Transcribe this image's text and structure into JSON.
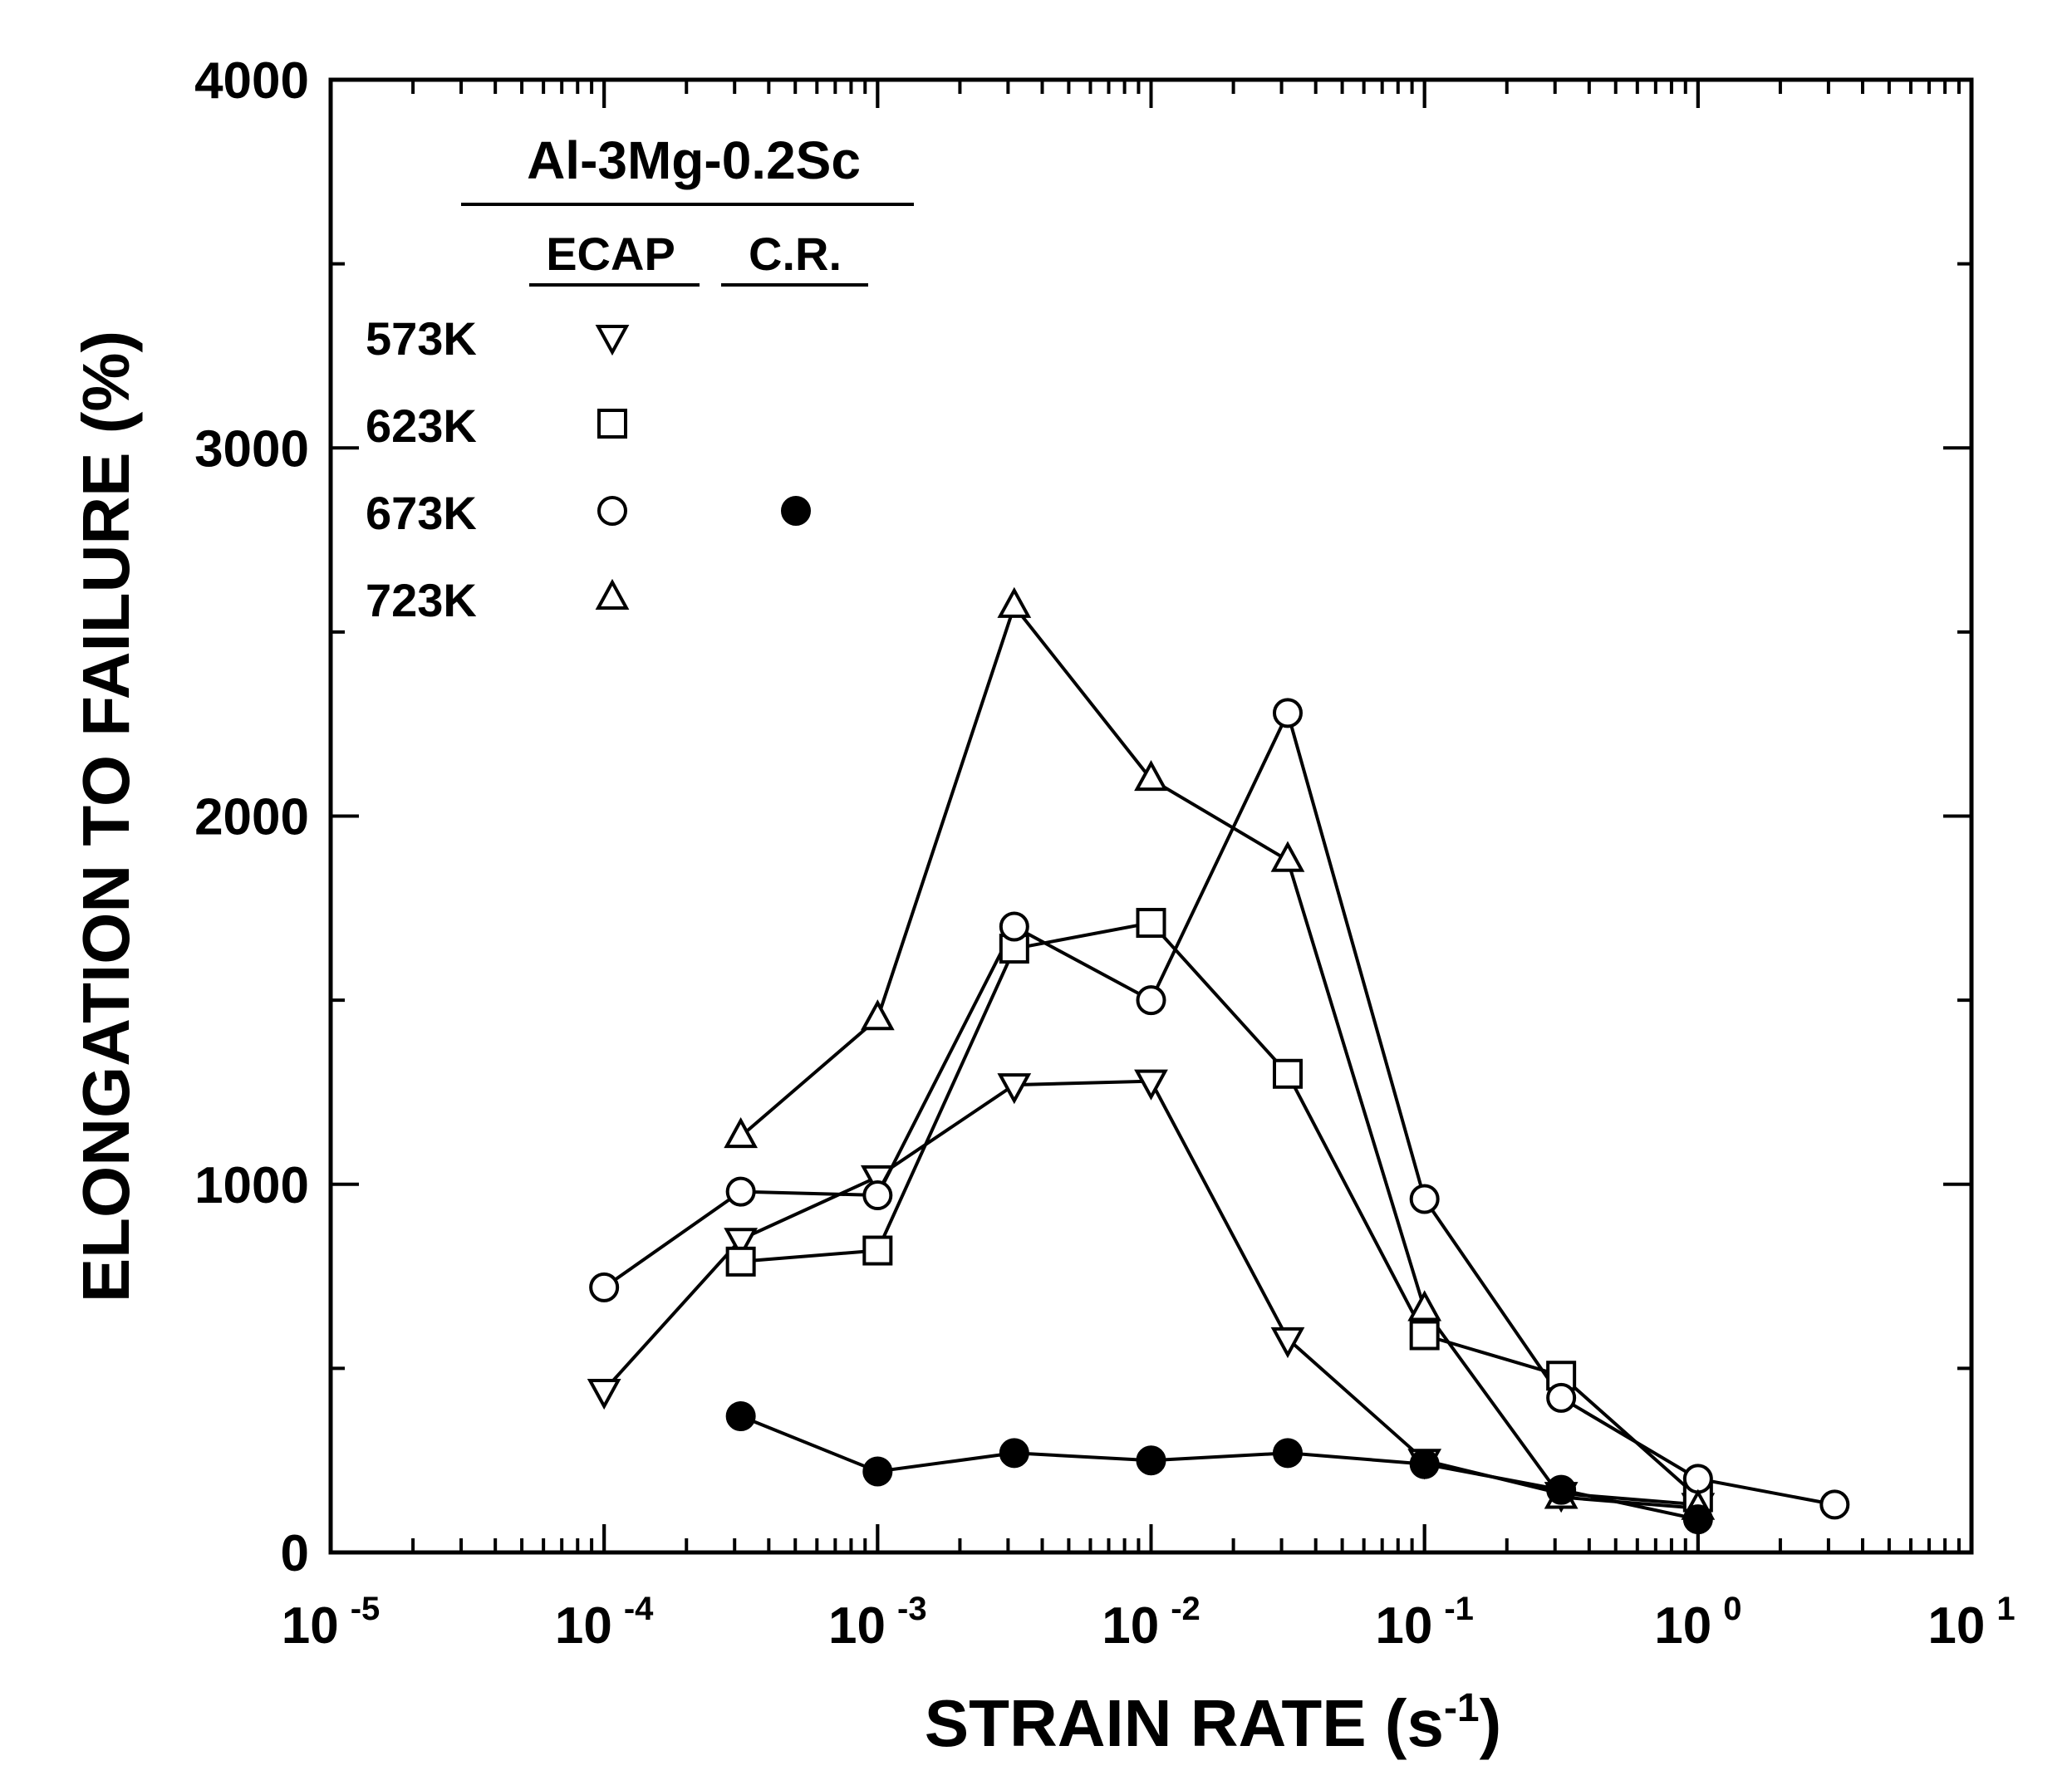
{
  "chart_data": {
    "type": "scatter",
    "xlabel_main": "STRAIN RATE (s",
    "xlabel_sup": "-1",
    "xlabel_close": ")",
    "ylabel": "ELONGATION TO FAILURE (%)",
    "xscale": "log",
    "xlim": [
      1e-05,
      10
    ],
    "ylim": [
      0,
      4000
    ],
    "x_ticks": [
      {
        "value": 1e-05,
        "base": "10",
        "exp": "-5"
      },
      {
        "value": 0.0001,
        "base": "10",
        "exp": "-4"
      },
      {
        "value": 0.001,
        "base": "10",
        "exp": "-3"
      },
      {
        "value": 0.01,
        "base": "10",
        "exp": "-2"
      },
      {
        "value": 0.1,
        "base": "10",
        "exp": "-1"
      },
      {
        "value": 1,
        "base": "10",
        "exp": "0"
      },
      {
        "value": 10,
        "base": "10",
        "exp": "1"
      }
    ],
    "y_ticks": [
      {
        "value": 0,
        "label": "0"
      },
      {
        "value": 1000,
        "label": "1000"
      },
      {
        "value": 2000,
        "label": "2000"
      },
      {
        "value": 3000,
        "label": "3000"
      },
      {
        "value": 4000,
        "label": "4000"
      }
    ],
    "legend": {
      "title": "Al-3Mg-0.2Sc",
      "col_headers": [
        "ECAP",
        "C.R."
      ],
      "rows": [
        "573K",
        "623K",
        "673K",
        "723K"
      ],
      "position": "top-left"
    },
    "series": [
      {
        "key": "ecap_573",
        "temperature": "573K",
        "process": "ECAP",
        "marker": "triangle-down",
        "filled": false,
        "x": [
          0.0001,
          0.000316,
          0.001,
          0.00316,
          0.01,
          0.0316,
          0.1,
          0.316,
          1
        ],
        "y": [
          440,
          850,
          1020,
          1270,
          1280,
          580,
          250,
          160,
          130
        ]
      },
      {
        "key": "ecap_623",
        "temperature": "623K",
        "process": "ECAP",
        "marker": "square",
        "filled": false,
        "x": [
          0.000316,
          0.001,
          0.00316,
          0.01,
          0.0316,
          0.1,
          0.316,
          1
        ],
        "y": [
          790,
          820,
          1640,
          1710,
          1300,
          590,
          480,
          150
        ]
      },
      {
        "key": "ecap_673",
        "temperature": "673K",
        "process": "ECAP",
        "marker": "circle",
        "filled": false,
        "x": [
          0.0001,
          0.000316,
          0.001,
          0.00316,
          0.01,
          0.0316,
          0.1,
          0.316,
          1,
          3.16
        ],
        "y": [
          720,
          980,
          970,
          1700,
          1500,
          2280,
          960,
          420,
          200,
          130
        ]
      },
      {
        "key": "ecap_723",
        "temperature": "723K",
        "process": "ECAP",
        "marker": "triangle-up",
        "filled": false,
        "x": [
          0.000316,
          0.001,
          0.00316,
          0.01,
          0.0316,
          0.1,
          0.316,
          1
        ],
        "y": [
          1130,
          1450,
          2570,
          2100,
          1880,
          660,
          150,
          120
        ]
      },
      {
        "key": "cr_673",
        "temperature": "673K",
        "process": "C.R.",
        "marker": "circle",
        "filled": true,
        "x": [
          0.000316,
          0.001,
          0.00316,
          0.01,
          0.0316,
          0.1,
          0.316,
          1
        ],
        "y": [
          370,
          220,
          270,
          250,
          270,
          240,
          170,
          90
        ]
      }
    ]
  }
}
